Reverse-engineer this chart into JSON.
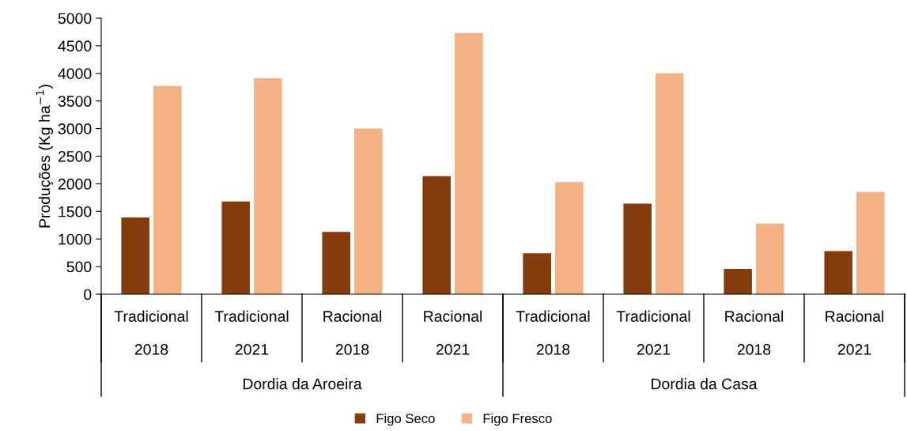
{
  "chart_data": {
    "type": "bar",
    "ylabel": "Produções (Kg ha$^{−1}$)",
    "categories": [
      "Tradicional\n2018",
      "Tradicional\n2021",
      "Racional\n2018",
      "Racional\n2021",
      "Tradicional\n2018",
      "Tradicional\n2021",
      "Racional\n2018",
      "Racional\n2021"
    ],
    "series": [
      {
        "name": "Figo Seco",
        "color": "#843c0c",
        "values": [
          1390,
          1680,
          1130,
          2140,
          740,
          1640,
          460,
          780
        ]
      },
      {
        "name": "Figo Fresco",
        "color": "#f4b183",
        "values": [
          3770,
          3910,
          3000,
          4730,
          2030,
          4000,
          1280,
          1850
        ]
      }
    ],
    "annotations": [
      "Dordia da Aroeira",
      "Dordia da Casa"
    ],
    "ylim": [
      0,
      5000
    ],
    "yticks": [
      0,
      500,
      1000,
      1500,
      2000,
      2500,
      3000,
      3500,
      4000,
      4500,
      5000
    ],
    "grid": false,
    "legend": "bottom"
  }
}
